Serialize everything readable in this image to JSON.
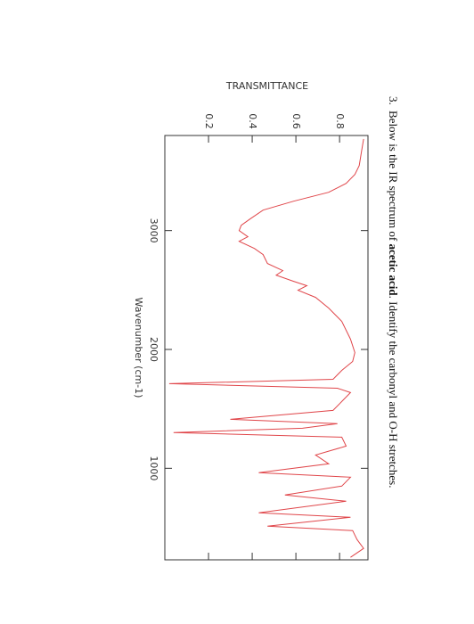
{
  "question": {
    "number": "3.",
    "text_before": "Below is the IR spectrum of ",
    "text_bold": "acetic acid",
    "text_after": ". Identify the carbonyl and O-H stretches."
  },
  "chart_data": {
    "type": "line",
    "ylabel": "TRANSMITTANCE",
    "xlabel": "Wavenumber (cm-1)",
    "xlim": [
      3800,
      230
    ],
    "xticks": [
      3000,
      2000,
      1000
    ],
    "ylim": [
      0,
      0.93
    ],
    "yticks": [
      0.2,
      0.4,
      0.6,
      0.8
    ],
    "x": [
      3771,
      3659,
      3547,
      3472,
      3397,
      3322,
      3247,
      3172,
      3097,
      3045,
      3000,
      2948,
      2910,
      2850,
      2798,
      2723,
      2663,
      2625,
      2573,
      2536,
      2498,
      2438,
      2348,
      2236,
      2086,
      1974,
      1899,
      1824,
      1749,
      1712,
      1674,
      1637,
      1562,
      1487,
      1412,
      1375,
      1337,
      1300,
      1262,
      1187,
      1112,
      1038,
      963,
      925,
      850,
      775,
      723,
      625,
      588,
      513,
      476,
      401,
      326,
      251
    ],
    "series": [
      {
        "color": "#e0464a",
        "values": [
          0.91,
          0.9,
          0.89,
          0.87,
          0.83,
          0.75,
          0.59,
          0.45,
          0.39,
          0.35,
          0.34,
          0.38,
          0.34,
          0.41,
          0.45,
          0.47,
          0.54,
          0.51,
          0.59,
          0.65,
          0.61,
          0.69,
          0.75,
          0.81,
          0.85,
          0.87,
          0.86,
          0.81,
          0.77,
          0.02,
          0.79,
          0.85,
          0.81,
          0.77,
          0.3,
          0.79,
          0.63,
          0.04,
          0.81,
          0.83,
          0.69,
          0.75,
          0.43,
          0.85,
          0.81,
          0.55,
          0.83,
          0.43,
          0.85,
          0.47,
          0.86,
          0.88,
          0.91,
          0.85
        ]
      }
    ]
  }
}
